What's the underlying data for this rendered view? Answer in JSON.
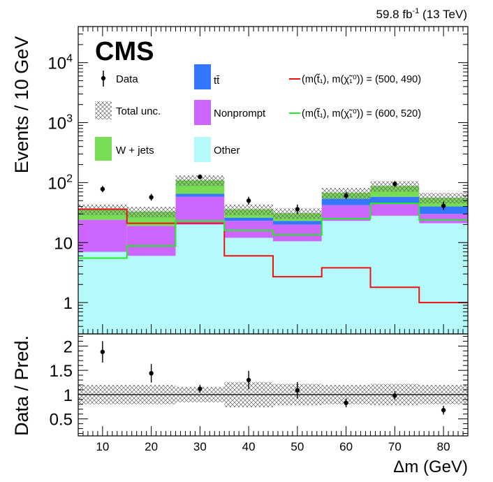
{
  "header": {
    "lumi_prefix": "59.8 fb",
    "lumi_exp": "-1",
    "lumi_suffix": " (13 TeV)",
    "experiment": "CMS"
  },
  "chart_data": {
    "type": "stacked-histogram",
    "bin_edges": [
      5,
      15,
      25,
      35,
      45,
      55,
      65,
      75,
      85
    ],
    "xlabel": "Δm (GeV)",
    "xticks": [
      10,
      20,
      30,
      40,
      50,
      60,
      70,
      80
    ],
    "main": {
      "ylabel": "Events / 10 GeV",
      "yscale": "log",
      "ylim": [
        0.3,
        40000
      ],
      "ytick_labels": [
        {
          "value": 1,
          "base": "1",
          "exp": ""
        },
        {
          "value": 10,
          "base": "10",
          "exp": ""
        },
        {
          "value": 100,
          "base": "10",
          "exp": "2"
        },
        {
          "value": 1000,
          "base": "10",
          "exp": "3"
        },
        {
          "value": 10000,
          "base": "10",
          "exp": "4"
        }
      ],
      "stack": [
        {
          "name": "Other",
          "color": "#b5fafa",
          "values": [
            7.0,
            6.0,
            20.0,
            12.0,
            10.5,
            23.0,
            28.0,
            21.0
          ]
        },
        {
          "name": "Nonprompt",
          "color": "#cc66ff",
          "values": [
            17.0,
            13.0,
            38.0,
            11.0,
            9.5,
            19.0,
            17.0,
            9.0
          ]
        },
        {
          "name": "tt̄",
          "color": "#3377ff",
          "values": [
            0,
            0,
            7.0,
            3.0,
            3.0,
            12.0,
            13.0,
            10.0
          ]
        },
        {
          "name": "W + jets",
          "color": "#77dd55",
          "values": [
            12.0,
            14.0,
            45.0,
            10.0,
            8.0,
            14.0,
            30.0,
            16.0
          ]
        }
      ],
      "total_unc_rel": 0.2,
      "data": {
        "name": "Data",
        "x": [
          10,
          20,
          30,
          40,
          50,
          60,
          70,
          80
        ],
        "y": [
          78,
          57,
          125,
          50,
          36,
          61,
          95,
          41
        ],
        "err_lo": [
          9,
          7,
          11,
          7,
          6,
          8,
          10,
          6
        ],
        "err_hi": [
          10,
          8,
          12,
          8,
          7,
          9,
          11,
          7
        ]
      },
      "signals": [
        {
          "name": "(m(t̃₁), m(χ̃₁⁰)) = (500, 490)",
          "color": "#ee1111",
          "values": [
            36,
            21,
            21,
            6.0,
            2.7,
            3.8,
            1.8,
            1.0
          ]
        },
        {
          "name": "(m(t̃₁), m(χ̃₁⁰)) = (600, 520)",
          "color": "#22ee22",
          "values": [
            5.5,
            8.8,
            23,
            16,
            13.5,
            25,
            45,
            24
          ]
        }
      ]
    },
    "legend": {
      "data": "Data",
      "unc": "Total unc.",
      "wjets": "W + jets",
      "tt": "tt̄",
      "nonprompt": "Nonprompt",
      "other": "Other",
      "sig1": "(m(t̃₁), m(χ̃₁⁰)) = (500, 490)",
      "sig2": "(m(t̃₁), m(χ̃₁⁰)) = (600, 520)"
    },
    "ratio": {
      "ylabel": "Data / Pred.",
      "ylim": [
        0.15,
        2.25
      ],
      "yticks": [
        "0.5",
        "1",
        "1.5",
        "2"
      ],
      "unc_band": [
        0.2,
        0.2,
        0.16,
        0.26,
        0.22,
        0.2,
        0.22,
        0.2
      ],
      "points": [
        1.88,
        1.44,
        1.12,
        1.3,
        1.09,
        0.83,
        0.98,
        0.68
      ],
      "err": [
        0.22,
        0.19,
        0.08,
        0.19,
        0.17,
        0.09,
        0.09,
        0.09
      ]
    }
  }
}
